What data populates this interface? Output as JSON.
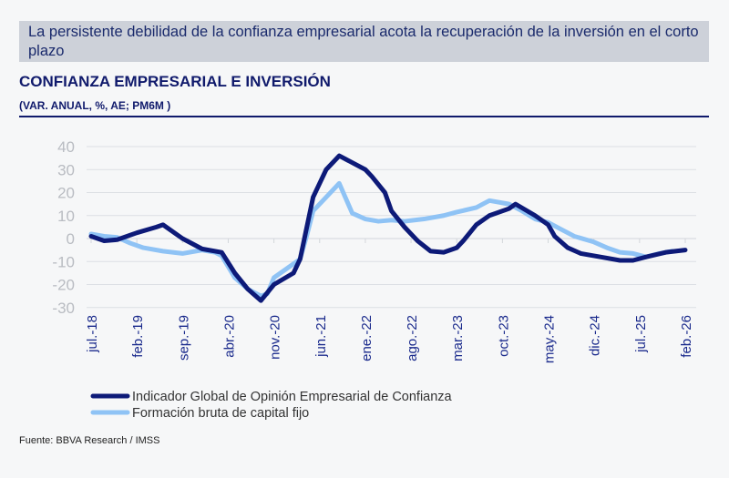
{
  "headline": "La persistente debilidad de la confianza empresarial acota la recuperación de la inversión en el corto plazo",
  "chart_data": {
    "type": "line",
    "title": "CONFIANZA EMPRESARIAL E INVERSIÓN",
    "subtitle": "(VAR. ANUAL, %, AE; PM6M )",
    "ylim": [
      -30,
      40
    ],
    "yticks": [
      40,
      30,
      20,
      10,
      0,
      -10,
      -20,
      -30
    ],
    "xticks": [
      {
        "date": "2018-07",
        "label": "jul.-18"
      },
      {
        "date": "2019-02",
        "label": "feb.-19"
      },
      {
        "date": "2019-09",
        "label": "sep.-19"
      },
      {
        "date": "2020-04",
        "label": "abr.-20"
      },
      {
        "date": "2020-11",
        "label": "nov.-20"
      },
      {
        "date": "2021-06",
        "label": "jun.-21"
      },
      {
        "date": "2022-01",
        "label": "ene.-22"
      },
      {
        "date": "2022-08",
        "label": "ago.-22"
      },
      {
        "date": "2023-03",
        "label": "mar.-23"
      },
      {
        "date": "2023-10",
        "label": "oct.-23"
      },
      {
        "date": "2024-05",
        "label": "may.-24"
      },
      {
        "date": "2024-12",
        "label": "dic.-24"
      },
      {
        "date": "2025-07",
        "label": "jul.-25"
      },
      {
        "date": "2026-02",
        "label": "feb.-26"
      }
    ],
    "grid": true,
    "legend": "bottom",
    "series": [
      {
        "name": "Indicador Global de Opinión Empresarial de Confianza",
        "color": "#0d1a78",
        "points": [
          [
            "2018-07",
            1
          ],
          [
            "2018-09",
            -1
          ],
          [
            "2018-11",
            -0.5
          ],
          [
            "2019-02",
            2.5
          ],
          [
            "2019-05",
            5
          ],
          [
            "2019-06",
            6
          ],
          [
            "2019-09",
            0
          ],
          [
            "2019-12",
            -4.5
          ],
          [
            "2020-03",
            -6
          ],
          [
            "2020-05",
            -15
          ],
          [
            "2020-07",
            -22
          ],
          [
            "2020-09",
            -27
          ],
          [
            "2020-11",
            -20
          ],
          [
            "2021-02",
            -15
          ],
          [
            "2021-03",
            -9
          ],
          [
            "2021-05",
            18
          ],
          [
            "2021-07",
            30
          ],
          [
            "2021-09",
            36
          ],
          [
            "2021-10",
            34.5
          ],
          [
            "2022-01",
            30
          ],
          [
            "2022-02",
            27
          ],
          [
            "2022-04",
            20
          ],
          [
            "2022-05",
            12
          ],
          [
            "2022-07",
            5
          ],
          [
            "2022-09",
            -1
          ],
          [
            "2022-11",
            -5.5
          ],
          [
            "2023-01",
            -6
          ],
          [
            "2023-03",
            -4
          ],
          [
            "2023-04",
            -1
          ],
          [
            "2023-06",
            6
          ],
          [
            "2023-08",
            10
          ],
          [
            "2023-11",
            13
          ],
          [
            "2023-12",
            15
          ],
          [
            "2024-03",
            10
          ],
          [
            "2024-05",
            6
          ],
          [
            "2024-06",
            1
          ],
          [
            "2024-08",
            -4
          ],
          [
            "2024-10",
            -6.5
          ],
          [
            "2025-01",
            -8
          ],
          [
            "2025-04",
            -9.5
          ],
          [
            "2025-06",
            -9.5
          ],
          [
            "2025-08",
            -8
          ],
          [
            "2025-11",
            -6
          ],
          [
            "2026-02",
            -5
          ]
        ]
      },
      {
        "name": "Formación bruta de capital fijo",
        "color": "#8fc3f5",
        "points": [
          [
            "2018-07",
            2
          ],
          [
            "2018-09",
            1
          ],
          [
            "2018-11",
            0.5
          ],
          [
            "2019-01",
            -2
          ],
          [
            "2019-03",
            -4
          ],
          [
            "2019-06",
            -5.5
          ],
          [
            "2019-09",
            -6.5
          ],
          [
            "2019-12",
            -5
          ],
          [
            "2020-02",
            -6
          ],
          [
            "2020-03",
            -7.5
          ],
          [
            "2020-05",
            -17
          ],
          [
            "2020-07",
            -22
          ],
          [
            "2020-09",
            -25
          ],
          [
            "2020-10",
            -24
          ],
          [
            "2020-11",
            -17
          ],
          [
            "2021-01",
            -13
          ],
          [
            "2021-03",
            -9
          ],
          [
            "2021-04",
            1
          ],
          [
            "2021-05",
            12
          ],
          [
            "2021-07",
            18
          ],
          [
            "2021-09",
            24
          ],
          [
            "2021-11",
            11
          ],
          [
            "2022-01",
            8.5
          ],
          [
            "2022-03",
            7.5
          ],
          [
            "2022-05",
            8
          ],
          [
            "2022-07",
            7.5
          ],
          [
            "2022-10",
            8.5
          ],
          [
            "2023-01",
            10
          ],
          [
            "2023-03",
            11.5
          ],
          [
            "2023-06",
            13.5
          ],
          [
            "2023-08",
            16.5
          ],
          [
            "2023-09",
            16
          ],
          [
            "2023-11",
            15
          ],
          [
            "2024-01",
            12
          ],
          [
            "2024-03",
            8.5
          ],
          [
            "2024-05",
            7
          ],
          [
            "2024-07",
            4
          ],
          [
            "2024-09",
            1
          ],
          [
            "2024-12",
            -1.5
          ],
          [
            "2025-02",
            -4
          ],
          [
            "2025-04",
            -6
          ],
          [
            "2025-06",
            -6.5
          ],
          [
            "2025-08",
            -8
          ],
          [
            "2025-10",
            -6.5
          ],
          [
            "2025-12",
            -5.5
          ]
        ]
      }
    ]
  },
  "source": "Fuente: BBVA Research / IMSS"
}
